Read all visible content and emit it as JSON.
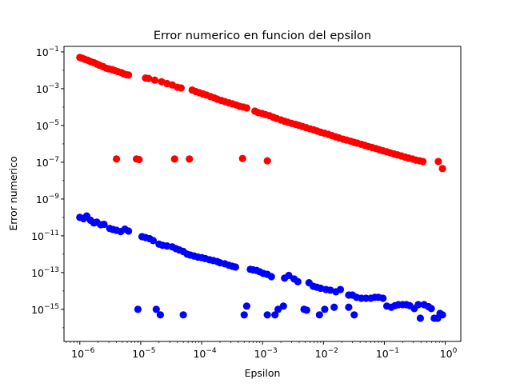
{
  "chart_data": {
    "type": "scatter",
    "title": "Error numerico en funcion del epsilon",
    "xlabel": "Epsilon",
    "ylabel": "Error numerico",
    "xscale": "log",
    "yscale": "log",
    "xlim": [
      5.5e-07,
      1.8
    ],
    "ylim": [
      1.8e-17,
      0.2
    ],
    "grid": false,
    "legend": "none",
    "x_ticks": [
      {
        "value": 1e-06,
        "base": "10",
        "exp": "−6"
      },
      {
        "value": 1e-05,
        "base": "10",
        "exp": "−5"
      },
      {
        "value": 0.0001,
        "base": "10",
        "exp": "−4"
      },
      {
        "value": 0.001,
        "base": "10",
        "exp": "−3"
      },
      {
        "value": 0.01,
        "base": "10",
        "exp": "−2"
      },
      {
        "value": 0.1,
        "base": "10",
        "exp": "−1"
      },
      {
        "value": 1,
        "base": "10",
        "exp": "0"
      }
    ],
    "y_ticks": [
      {
        "value": 1e-15,
        "base": "10",
        "exp": "−15"
      },
      {
        "value": 1e-13,
        "base": "10",
        "exp": "−13"
      },
      {
        "value": 1e-11,
        "base": "10",
        "exp": "−11"
      },
      {
        "value": 1e-09,
        "base": "10",
        "exp": "−9"
      },
      {
        "value": 1e-07,
        "base": "10",
        "exp": "−7"
      },
      {
        "value": 1e-05,
        "base": "10",
        "exp": "−5"
      },
      {
        "value": 0.001,
        "base": "10",
        "exp": "−3"
      },
      {
        "value": 0.1,
        "base": "10",
        "exp": "−1"
      }
    ],
    "series": [
      {
        "color": "#ff0000",
        "points": [
          [
            1e-06,
            0.05
          ],
          [
            1.1e-06,
            0.045
          ],
          [
            1.2e-06,
            0.04
          ],
          [
            1.35e-06,
            0.035
          ],
          [
            1.5e-06,
            0.03
          ],
          [
            1.7e-06,
            0.026
          ],
          [
            1.9e-06,
            0.022
          ],
          [
            2.1e-06,
            0.019
          ],
          [
            2.4e-06,
            0.016
          ],
          [
            2.7e-06,
            0.013
          ],
          [
            3e-06,
            0.012
          ],
          [
            3.4e-06,
            0.011
          ],
          [
            3.8e-06,
            0.0095
          ],
          [
            4.2e-06,
            0.0085
          ],
          [
            4.8e-06,
            0.0075
          ],
          [
            5.2e-06,
            0.0065
          ],
          [
            5.8e-06,
            0.0058
          ],
          [
            6.3e-06,
            0.0055
          ],
          [
            1.2e-05,
            0.0038
          ],
          [
            1.35e-05,
            0.0036
          ],
          [
            1.7e-05,
            0.0029
          ],
          [
            2.2e-05,
            0.0024
          ],
          [
            2.7e-05,
            0.0019
          ],
          [
            3.3e-05,
            0.0016
          ],
          [
            4e-05,
            0.0012
          ],
          [
            4.6e-05,
            0.0011
          ],
          [
            7e-05,
            0.00085
          ],
          [
            8e-05,
            0.0007
          ],
          [
            9.2e-05,
            0.0006
          ],
          [
            0.000105,
            0.00052
          ],
          [
            0.00012,
            0.00045
          ],
          [
            0.00014,
            0.00037
          ],
          [
            0.00016,
            0.00032
          ],
          [
            0.00018,
            0.00027
          ],
          [
            0.00021,
            0.00023
          ],
          [
            0.00024,
            0.0002
          ],
          [
            0.00028,
            0.00017
          ],
          [
            0.00032,
            0.00015
          ],
          [
            0.00037,
            0.00013
          ],
          [
            0.00042,
            0.00011
          ],
          [
            0.00048,
            0.0001
          ],
          [
            0.00055,
            9e-05
          ],
          [
            0.00075,
            6e-05
          ],
          [
            0.00085,
            5e-05
          ],
          [
            0.00098,
            4.5e-05
          ],
          [
            0.00112,
            3.9e-05
          ],
          [
            0.0013,
            3.4e-05
          ],
          [
            0.0015,
            2.8e-05
          ],
          [
            0.0017,
            2.4e-05
          ],
          [
            0.002,
            2e-05
          ],
          [
            0.0023,
            1.7e-05
          ],
          [
            0.0026,
            1.5e-05
          ],
          [
            0.003,
            1.3e-05
          ],
          [
            0.0035,
            1.15e-05
          ],
          [
            0.004,
            1e-05
          ],
          [
            0.0045,
            8.8e-06
          ],
          [
            0.0052,
            7.6e-06
          ],
          [
            0.006,
            6.6e-06
          ],
          [
            0.0069,
            5.8e-06
          ],
          [
            0.0079,
            5e-06
          ],
          [
            0.009,
            4.3e-06
          ],
          [
            0.0104,
            3.8e-06
          ],
          [
            0.012,
            3.3e-06
          ],
          [
            0.0138,
            2.8e-06
          ],
          [
            0.0158,
            2.4e-06
          ],
          [
            0.018,
            2.1e-06
          ],
          [
            0.021,
            1.8e-06
          ],
          [
            0.024,
            1.6e-06
          ],
          [
            0.028,
            1.4e-06
          ],
          [
            0.032,
            1.2e-06
          ],
          [
            0.036,
            1.1e-06
          ],
          [
            0.042,
            9.5e-07
          ],
          [
            0.048,
            8.2e-07
          ],
          [
            0.055,
            7.1e-07
          ],
          [
            0.063,
            6.3e-07
          ],
          [
            0.073,
            5.5e-07
          ],
          [
            0.083,
            4.8e-07
          ],
          [
            0.095,
            4.2e-07
          ],
          [
            0.11,
            3.7e-07
          ],
          [
            0.126,
            3.2e-07
          ],
          [
            0.145,
            2.8e-07
          ],
          [
            0.166,
            2.5e-07
          ],
          [
            0.19,
            2.2e-07
          ],
          [
            0.22,
            1.9e-07
          ],
          [
            0.25,
            1.7e-07
          ],
          [
            0.29,
            1.5e-07
          ],
          [
            0.33,
            1.3e-07
          ],
          [
            0.38,
            1.2e-07
          ],
          [
            0.43,
            1.1e-07
          ],
          [
            4e-06,
            1.5e-07
          ],
          [
            8.5e-06,
            1.5e-07
          ],
          [
            9.4e-06,
            1.4e-07
          ],
          [
            3.6e-05,
            1.5e-07
          ],
          [
            6.3e-05,
            1.5e-07
          ],
          [
            0.00047,
            1.6e-07
          ],
          [
            0.0012,
            1.2e-07
          ],
          [
            0.77,
            1.1e-07
          ],
          [
            0.9,
            4.5e-08
          ]
        ]
      },
      {
        "color": "#0000ff",
        "points": [
          [
            1e-06,
            1e-10
          ],
          [
            1.15e-06,
            8.5e-11
          ],
          [
            1.3e-06,
            1.2e-10
          ],
          [
            1.5e-06,
            7e-11
          ],
          [
            1.7e-06,
            5e-11
          ],
          [
            1.9e-06,
            5.5e-11
          ],
          [
            2.2e-06,
            4e-11
          ],
          [
            2.5e-06,
            4.2e-11
          ],
          [
            3.1e-06,
            2.5e-11
          ],
          [
            3.5e-06,
            2.2e-11
          ],
          [
            4e-06,
            2e-11
          ],
          [
            4.7e-06,
            1.7e-11
          ],
          [
            5.5e-06,
            2.3e-11
          ],
          [
            6.3e-06,
            1.8e-11
          ],
          [
            1.05e-05,
            9e-12
          ],
          [
            1.2e-05,
            8e-12
          ],
          [
            1.4e-05,
            7e-12
          ],
          [
            1.6e-05,
            5.5e-12
          ],
          [
            2e-05,
            3.5e-12
          ],
          [
            2.3e-05,
            3e-12
          ],
          [
            2.7e-05,
            2.8e-12
          ],
          [
            3.3e-05,
            2.5e-12
          ],
          [
            3.8e-05,
            2e-12
          ],
          [
            4.3e-05,
            1.7e-12
          ],
          [
            5e-05,
            1.4e-12
          ],
          [
            5.8e-05,
            1e-12
          ],
          [
            6.5e-05,
            9e-13
          ],
          [
            7.5e-05,
            8e-13
          ],
          [
            8.7e-05,
            7e-13
          ],
          [
            0.0001,
            6.5e-13
          ],
          [
            0.000115,
            5.8e-13
          ],
          [
            0.000135,
            5e-13
          ],
          [
            0.000155,
            4.5e-13
          ],
          [
            0.00018,
            4e-13
          ],
          [
            0.0002,
            3.4e-13
          ],
          [
            0.00024,
            3e-13
          ],
          [
            0.00028,
            2.5e-13
          ],
          [
            0.00032,
            2.2e-13
          ],
          [
            0.00036,
            2e-13
          ],
          [
            0.00063,
            1.5e-13
          ],
          [
            0.0007,
            1.4e-13
          ],
          [
            0.0008,
            1.3e-13
          ],
          [
            0.0009,
            1.1e-13
          ],
          [
            0.00103,
            9e-14
          ],
          [
            0.0012,
            8e-14
          ],
          [
            0.0014,
            6e-14
          ],
          [
            0.0023,
            5e-14
          ],
          [
            0.0027,
            7e-14
          ],
          [
            0.0033,
            4.5e-14
          ],
          [
            0.0038,
            3.2e-14
          ],
          [
            0.0058,
            2.8e-14
          ],
          [
            0.0068,
            1.8e-14
          ],
          [
            0.0078,
            1.6e-14
          ],
          [
            0.009,
            1.4e-14
          ],
          [
            0.011,
            1.2e-14
          ],
          [
            0.013,
            1.1e-14
          ],
          [
            0.016,
            9e-15
          ],
          [
            0.019,
            1.2e-14
          ],
          [
            0.026,
            6e-15
          ],
          [
            0.03,
            6e-15
          ],
          [
            0.035,
            4.5e-15
          ],
          [
            0.042,
            4e-15
          ],
          [
            0.05,
            4e-15
          ],
          [
            0.06,
            4e-15
          ],
          [
            0.07,
            4.5e-15
          ],
          [
            0.08,
            4.5e-15
          ],
          [
            0.095,
            4e-15
          ],
          [
            0.11,
            1.5e-15
          ],
          [
            0.13,
            1.3e-15
          ],
          [
            0.15,
            1.6e-15
          ],
          [
            0.17,
            1.8e-15
          ],
          [
            0.2,
            1.8e-15
          ],
          [
            0.23,
            1.8e-15
          ],
          [
            0.26,
            1.6e-15
          ],
          [
            0.31,
            1.1e-15
          ],
          [
            0.36,
            1.8e-15
          ],
          [
            0.39,
            3.3e-16
          ],
          [
            0.45,
            1.8e-15
          ],
          [
            0.53,
            1.4e-15
          ],
          [
            0.59,
            1.1e-15
          ],
          [
            0.66,
            3.3e-16
          ],
          [
            0.75,
            3.3e-16
          ],
          [
            0.82,
            6e-16
          ],
          [
            0.9,
            5e-16
          ],
          [
            9e-06,
            1e-15
          ],
          [
            1.8e-05,
            1e-15
          ],
          [
            2.1e-05,
            5e-16
          ],
          [
            5e-05,
            5e-16
          ],
          [
            0.0005,
            5e-16
          ],
          [
            0.00055,
            1.5e-15
          ],
          [
            0.0012,
            5e-16
          ],
          [
            0.0016,
            5e-16
          ],
          [
            0.0018,
            1e-15
          ],
          [
            0.0022,
            1.5e-15
          ],
          [
            0.0048,
            1e-15
          ],
          [
            0.0053,
            9e-16
          ],
          [
            0.0086,
            5e-16
          ],
          [
            0.0105,
            1e-15
          ],
          [
            0.015,
            1.3e-15
          ],
          [
            0.026,
            1.3e-15
          ],
          [
            0.032,
            5e-16
          ]
        ]
      }
    ]
  }
}
